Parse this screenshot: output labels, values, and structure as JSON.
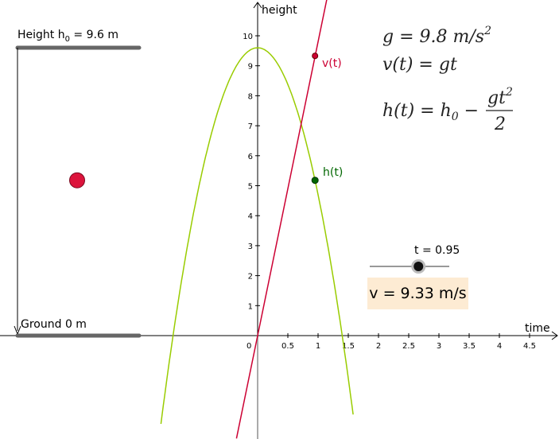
{
  "labels": {
    "height_prefix": "Height h",
    "height_sub": "0",
    "height_suffix": " = 9.6 m",
    "ground": "Ground 0 m",
    "y_axis": "height",
    "x_axis": "time",
    "v_point": "v(t)",
    "h_point": "h(t)",
    "slider": "t = 0.95",
    "velocity_box": "v = 9.33 m/s"
  },
  "formulas": {
    "g_lhs": "g = 9.8 ",
    "g_unit": "m/s",
    "g_exp": "2",
    "v_eq": "v(t) = gt",
    "h_lhs": "h(t) = h",
    "h_sub": "0",
    "h_minus": " − ",
    "h_num": "gt",
    "h_num_exp": "2",
    "h_den": "2"
  },
  "slider": {
    "t": 0.95,
    "min": -1.5,
    "max": 2.5
  },
  "model": {
    "g": 9.8,
    "h0": 9.6,
    "t": 0.95,
    "v": 9.33,
    "h": 5.18
  },
  "x_ticks": [
    "0",
    "0.5",
    "1",
    "1.5",
    "2",
    "2.5",
    "3",
    "3.5",
    "4",
    "4.5"
  ],
  "y_ticks": [
    "1",
    "2",
    "3",
    "4",
    "5",
    "6",
    "7",
    "8",
    "9",
    "10"
  ],
  "colors": {
    "parabola": "#99cc00",
    "velocity": "#cc0033",
    "h_point": "#006600",
    "ball": "#dc143c",
    "platform": "#666666",
    "box": "#fdebd3"
  }
}
